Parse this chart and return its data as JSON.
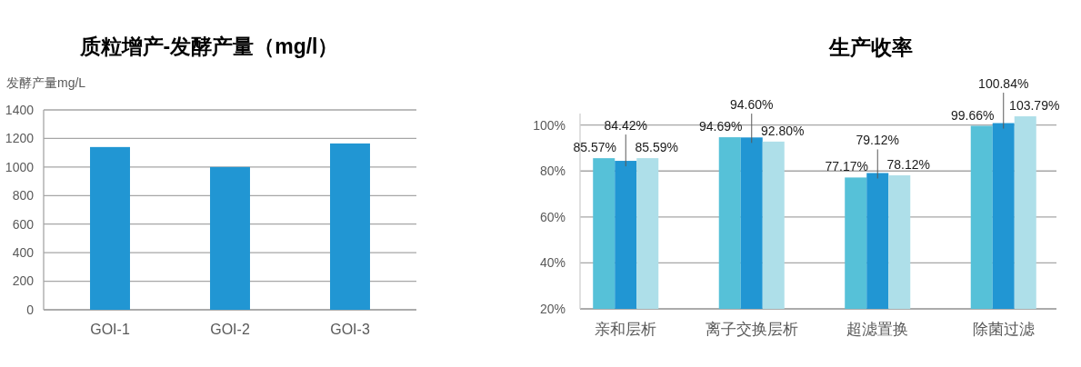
{
  "chart_data": [
    {
      "type": "bar",
      "title": "质粒增产-发酵产量（mg/l）",
      "ylabel": "发酵产量mg/L",
      "categories": [
        "GOI-1",
        "GOI-2",
        "GOI-3"
      ],
      "values": [
        1140,
        1000,
        1165
      ],
      "color": "#2196d3",
      "ylim": [
        0,
        1400
      ],
      "yticks": [
        0,
        200,
        400,
        600,
        800,
        1000,
        1200,
        1400
      ],
      "grid": "y"
    },
    {
      "type": "bar",
      "title": "生产收率",
      "categories": [
        "亲和层析",
        "离子交换层析",
        "超滤置换",
        "除菌过滤"
      ],
      "series": [
        {
          "color": "#56c1d8",
          "values": [
            85.57,
            94.69,
            77.17,
            99.66
          ],
          "value_labels": [
            "85.57%",
            "94.69%",
            "77.17%",
            "99.66%"
          ]
        },
        {
          "color": "#2196d3",
          "values": [
            84.42,
            94.6,
            79.12,
            100.84
          ],
          "value_labels": [
            "84.42%",
            "94.60%",
            "79.12%",
            "100.84%"
          ]
        },
        {
          "color": "#aedfe9",
          "values": [
            85.59,
            92.8,
            78.12,
            103.79
          ],
          "value_labels": [
            "85.59%",
            "92.80%",
            "78.12%",
            "103.79%"
          ]
        }
      ],
      "ylim": [
        20,
        105
      ],
      "yticks": [
        {
          "value": 20,
          "label": "20%"
        },
        {
          "value": 40,
          "label": "40%"
        },
        {
          "value": 60,
          "label": "60%"
        },
        {
          "value": 80,
          "label": "80%"
        },
        {
          "value": 100,
          "label": "100%"
        }
      ],
      "grid": "y"
    }
  ]
}
